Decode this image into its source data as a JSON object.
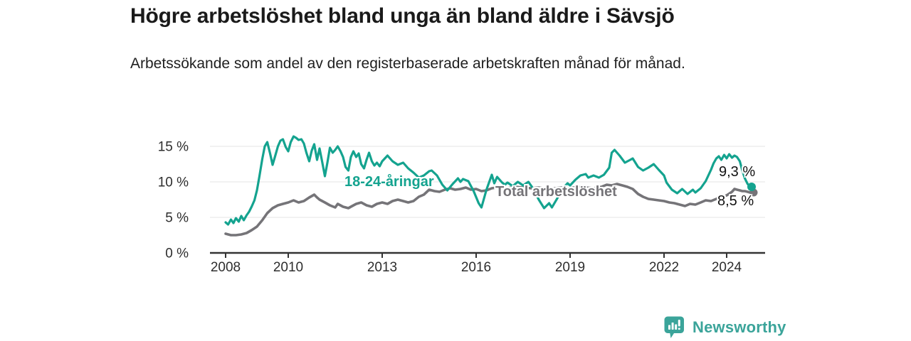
{
  "header": {
    "title": "Högre arbetslöshet bland unga än bland äldre i Sävsjö",
    "subtitle": "Arbetssökande som andel av den registerbaserade arbetskraften månad för månad."
  },
  "footer": {
    "brand": "Newsworthy",
    "logo_icon": "bar-chart-speech-bubble-icon"
  },
  "colors": {
    "accent_teal": "#14a38f",
    "line_gray": "#757478",
    "brand_teal": "#3ba49a",
    "axis_text": "#2e2e2e",
    "gridline": "#e4e4e4",
    "text_dark": "#1a1a1a"
  },
  "chart_data": {
    "type": "line",
    "title": "Högre arbetslöshet bland unga än bland äldre i Sävsjö",
    "subtitle": "Arbetssökande som andel av den registerbaserade arbetskraften månad för månad.",
    "xlabel": "",
    "ylabel": "",
    "grid": "horizontal",
    "legend_position": "inline-labels",
    "xlim": [
      2007.5,
      2025.2
    ],
    "ylim": [
      0,
      17.5
    ],
    "x_ticks": [
      {
        "x": 2008,
        "label": "2008"
      },
      {
        "x": 2010,
        "label": "2010"
      },
      {
        "x": 2013,
        "label": "2013"
      },
      {
        "x": 2016,
        "label": "2016"
      },
      {
        "x": 2019,
        "label": "2019"
      },
      {
        "x": 2022,
        "label": "2022"
      },
      {
        "x": 2024,
        "label": "2024"
      }
    ],
    "y_ticks": [
      {
        "y": 0,
        "label": "0 %"
      },
      {
        "y": 5,
        "label": "5 %"
      },
      {
        "y": 10,
        "label": "10 %"
      },
      {
        "y": 15,
        "label": "15 %"
      }
    ],
    "series": [
      {
        "name": "18-24-åringar",
        "color": "#14a38f",
        "end_label": "9,3 %",
        "last_value": 9.3,
        "points": [
          [
            2008.0,
            4.3
          ],
          [
            2008.08,
            4.0
          ],
          [
            2008.17,
            4.7
          ],
          [
            2008.25,
            4.2
          ],
          [
            2008.33,
            4.9
          ],
          [
            2008.42,
            4.4
          ],
          [
            2008.5,
            5.2
          ],
          [
            2008.58,
            4.6
          ],
          [
            2008.67,
            5.3
          ],
          [
            2008.75,
            5.8
          ],
          [
            2008.83,
            6.5
          ],
          [
            2008.92,
            7.4
          ],
          [
            2009.0,
            8.8
          ],
          [
            2009.08,
            10.8
          ],
          [
            2009.17,
            13.2
          ],
          [
            2009.25,
            15.0
          ],
          [
            2009.33,
            15.6
          ],
          [
            2009.42,
            14.0
          ],
          [
            2009.5,
            12.4
          ],
          [
            2009.58,
            13.6
          ],
          [
            2009.67,
            15.0
          ],
          [
            2009.75,
            15.8
          ],
          [
            2009.83,
            16.0
          ],
          [
            2009.92,
            14.9
          ],
          [
            2010.0,
            14.3
          ],
          [
            2010.08,
            15.6
          ],
          [
            2010.17,
            16.4
          ],
          [
            2010.25,
            16.2
          ],
          [
            2010.33,
            15.9
          ],
          [
            2010.42,
            16.0
          ],
          [
            2010.5,
            15.4
          ],
          [
            2010.58,
            14.1
          ],
          [
            2010.67,
            12.9
          ],
          [
            2010.75,
            14.4
          ],
          [
            2010.83,
            15.3
          ],
          [
            2010.92,
            13.1
          ],
          [
            2011.0,
            14.7
          ],
          [
            2011.08,
            12.9
          ],
          [
            2011.17,
            10.8
          ],
          [
            2011.25,
            12.7
          ],
          [
            2011.33,
            14.8
          ],
          [
            2011.42,
            14.1
          ],
          [
            2011.5,
            14.5
          ],
          [
            2011.58,
            15.0
          ],
          [
            2011.67,
            14.3
          ],
          [
            2011.75,
            13.5
          ],
          [
            2011.83,
            12.1
          ],
          [
            2011.92,
            11.6
          ],
          [
            2012.0,
            13.5
          ],
          [
            2012.08,
            14.3
          ],
          [
            2012.17,
            13.5
          ],
          [
            2012.25,
            14.0
          ],
          [
            2012.33,
            12.5
          ],
          [
            2012.42,
            11.9
          ],
          [
            2012.5,
            13.1
          ],
          [
            2012.58,
            14.1
          ],
          [
            2012.67,
            12.9
          ],
          [
            2012.75,
            12.3
          ],
          [
            2012.83,
            12.7
          ],
          [
            2012.92,
            12.2
          ],
          [
            2013.0,
            12.9
          ],
          [
            2013.17,
            13.7
          ],
          [
            2013.33,
            12.9
          ],
          [
            2013.5,
            12.4
          ],
          [
            2013.67,
            12.7
          ],
          [
            2013.83,
            11.9
          ],
          [
            2014.0,
            11.3
          ],
          [
            2014.17,
            10.6
          ],
          [
            2014.33,
            10.9
          ],
          [
            2014.5,
            11.5
          ],
          [
            2014.58,
            11.6
          ],
          [
            2014.75,
            10.9
          ],
          [
            2014.92,
            9.6
          ],
          [
            2015.08,
            8.8
          ],
          [
            2015.25,
            9.7
          ],
          [
            2015.42,
            10.5
          ],
          [
            2015.5,
            10.0
          ],
          [
            2015.58,
            10.4
          ],
          [
            2015.75,
            10.1
          ],
          [
            2015.92,
            8.7
          ],
          [
            2016.08,
            7.0
          ],
          [
            2016.17,
            6.4
          ],
          [
            2016.33,
            8.9
          ],
          [
            2016.5,
            11.0
          ],
          [
            2016.58,
            9.8
          ],
          [
            2016.67,
            10.7
          ],
          [
            2016.83,
            9.9
          ],
          [
            2016.92,
            9.6
          ],
          [
            2017.0,
            9.9
          ],
          [
            2017.17,
            9.4
          ],
          [
            2017.33,
            10.0
          ],
          [
            2017.5,
            9.5
          ],
          [
            2017.67,
            10.0
          ],
          [
            2017.83,
            9.0
          ],
          [
            2018.0,
            7.5
          ],
          [
            2018.17,
            6.3
          ],
          [
            2018.33,
            7.0
          ],
          [
            2018.42,
            6.4
          ],
          [
            2018.58,
            7.6
          ],
          [
            2018.75,
            9.0
          ],
          [
            2018.92,
            9.8
          ],
          [
            2019.0,
            9.5
          ],
          [
            2019.17,
            10.3
          ],
          [
            2019.33,
            10.9
          ],
          [
            2019.5,
            11.1
          ],
          [
            2019.58,
            10.6
          ],
          [
            2019.75,
            10.9
          ],
          [
            2019.92,
            10.6
          ],
          [
            2020.08,
            11.0
          ],
          [
            2020.25,
            12.0
          ],
          [
            2020.33,
            14.1
          ],
          [
            2020.42,
            14.5
          ],
          [
            2020.58,
            13.7
          ],
          [
            2020.75,
            12.7
          ],
          [
            2020.92,
            13.1
          ],
          [
            2021.0,
            13.3
          ],
          [
            2021.17,
            12.1
          ],
          [
            2021.33,
            11.6
          ],
          [
            2021.5,
            12.0
          ],
          [
            2021.67,
            12.5
          ],
          [
            2021.83,
            11.7
          ],
          [
            2022.0,
            10.9
          ],
          [
            2022.08,
            9.9
          ],
          [
            2022.25,
            8.9
          ],
          [
            2022.42,
            8.4
          ],
          [
            2022.58,
            9.0
          ],
          [
            2022.75,
            8.3
          ],
          [
            2022.92,
            8.9
          ],
          [
            2023.0,
            8.5
          ],
          [
            2023.17,
            9.1
          ],
          [
            2023.33,
            10.1
          ],
          [
            2023.5,
            11.7
          ],
          [
            2023.58,
            12.6
          ],
          [
            2023.67,
            13.3
          ],
          [
            2023.75,
            13.6
          ],
          [
            2023.83,
            13.1
          ],
          [
            2023.92,
            13.8
          ],
          [
            2024.0,
            13.3
          ],
          [
            2024.08,
            13.9
          ],
          [
            2024.17,
            13.4
          ],
          [
            2024.25,
            13.7
          ],
          [
            2024.33,
            13.5
          ],
          [
            2024.42,
            12.9
          ],
          [
            2024.5,
            11.6
          ],
          [
            2024.58,
            10.5
          ],
          [
            2024.67,
            9.7
          ],
          [
            2024.75,
            9.3
          ]
        ]
      },
      {
        "name": "Total arbetslöshet",
        "color": "#757478",
        "end_label": "8,5 %",
        "last_value": 8.5,
        "points": [
          [
            2008.0,
            2.7
          ],
          [
            2008.17,
            2.5
          ],
          [
            2008.33,
            2.5
          ],
          [
            2008.5,
            2.6
          ],
          [
            2008.67,
            2.8
          ],
          [
            2008.83,
            3.2
          ],
          [
            2009.0,
            3.7
          ],
          [
            2009.17,
            4.6
          ],
          [
            2009.33,
            5.6
          ],
          [
            2009.5,
            6.3
          ],
          [
            2009.67,
            6.7
          ],
          [
            2009.83,
            6.9
          ],
          [
            2010.0,
            7.1
          ],
          [
            2010.17,
            7.4
          ],
          [
            2010.33,
            7.1
          ],
          [
            2010.5,
            7.3
          ],
          [
            2010.67,
            7.8
          ],
          [
            2010.83,
            8.2
          ],
          [
            2010.92,
            7.8
          ],
          [
            2011.0,
            7.5
          ],
          [
            2011.17,
            7.1
          ],
          [
            2011.33,
            6.7
          ],
          [
            2011.5,
            6.4
          ],
          [
            2011.58,
            6.9
          ],
          [
            2011.75,
            6.5
          ],
          [
            2011.92,
            6.3
          ],
          [
            2012.0,
            6.5
          ],
          [
            2012.17,
            6.9
          ],
          [
            2012.33,
            7.1
          ],
          [
            2012.5,
            6.7
          ],
          [
            2012.67,
            6.5
          ],
          [
            2012.83,
            6.9
          ],
          [
            2013.0,
            7.1
          ],
          [
            2013.17,
            6.9
          ],
          [
            2013.33,
            7.3
          ],
          [
            2013.5,
            7.5
          ],
          [
            2013.67,
            7.3
          ],
          [
            2013.83,
            7.1
          ],
          [
            2014.0,
            7.3
          ],
          [
            2014.17,
            7.9
          ],
          [
            2014.33,
            8.2
          ],
          [
            2014.5,
            8.9
          ],
          [
            2014.67,
            8.7
          ],
          [
            2014.83,
            8.6
          ],
          [
            2015.0,
            8.9
          ],
          [
            2015.17,
            9.1
          ],
          [
            2015.33,
            8.9
          ],
          [
            2015.5,
            9.0
          ],
          [
            2015.67,
            9.2
          ],
          [
            2015.83,
            8.9
          ],
          [
            2016.0,
            9.0
          ],
          [
            2016.17,
            8.7
          ],
          [
            2016.33,
            8.8
          ],
          [
            2016.5,
            9.1
          ],
          [
            2016.67,
            9.2
          ],
          [
            2016.83,
            9.0
          ],
          [
            2017.0,
            9.1
          ],
          [
            2017.25,
            9.3
          ],
          [
            2017.5,
            9.2
          ],
          [
            2017.75,
            9.1
          ],
          [
            2018.0,
            9.2
          ],
          [
            2018.25,
            9.0
          ],
          [
            2018.5,
            9.1
          ],
          [
            2018.75,
            9.2
          ],
          [
            2019.0,
            9.1
          ],
          [
            2019.25,
            9.3
          ],
          [
            2019.5,
            9.2
          ],
          [
            2019.75,
            9.1
          ],
          [
            2020.0,
            9.3
          ],
          [
            2020.17,
            9.6
          ],
          [
            2020.33,
            9.5
          ],
          [
            2020.5,
            9.7
          ],
          [
            2020.67,
            9.5
          ],
          [
            2020.83,
            9.3
          ],
          [
            2021.0,
            9.0
          ],
          [
            2021.17,
            8.3
          ],
          [
            2021.33,
            7.9
          ],
          [
            2021.5,
            7.6
          ],
          [
            2021.67,
            7.5
          ],
          [
            2021.83,
            7.4
          ],
          [
            2022.0,
            7.3
          ],
          [
            2022.17,
            7.1
          ],
          [
            2022.33,
            7.0
          ],
          [
            2022.5,
            6.8
          ],
          [
            2022.67,
            6.6
          ],
          [
            2022.83,
            6.9
          ],
          [
            2023.0,
            6.8
          ],
          [
            2023.17,
            7.1
          ],
          [
            2023.33,
            7.4
          ],
          [
            2023.5,
            7.3
          ],
          [
            2023.67,
            7.6
          ],
          [
            2023.83,
            7.9
          ],
          [
            2024.0,
            8.1
          ],
          [
            2024.17,
            8.6
          ],
          [
            2024.25,
            9.0
          ],
          [
            2024.33,
            8.9
          ],
          [
            2024.42,
            8.8
          ],
          [
            2024.5,
            8.7
          ],
          [
            2024.58,
            8.7
          ],
          [
            2024.67,
            8.6
          ],
          [
            2024.75,
            8.5
          ]
        ]
      }
    ]
  }
}
